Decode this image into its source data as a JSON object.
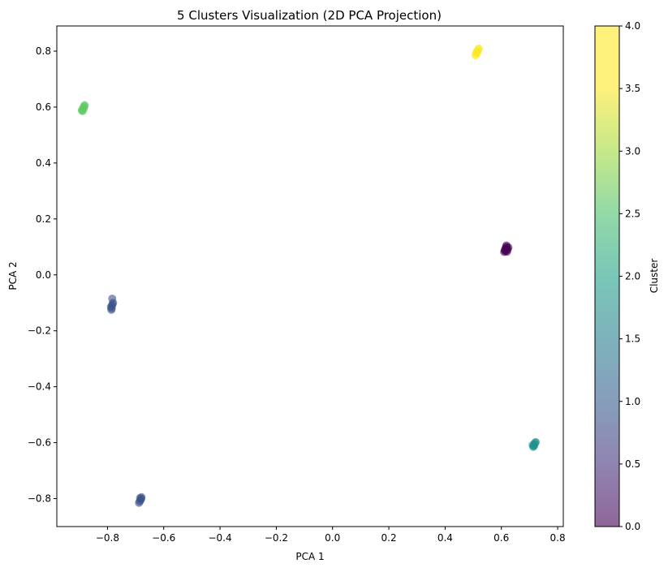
{
  "chart_data": {
    "type": "scatter",
    "title": "5 Clusters Visualization (2D PCA Projection)",
    "xlabel": "PCA 1",
    "ylabel": "PCA 2",
    "xlim": [
      -0.98,
      0.82
    ],
    "ylim": [
      -0.9,
      0.89
    ],
    "xticks": [
      -0.8,
      -0.6,
      -0.4,
      -0.2,
      0.0,
      0.2,
      0.4,
      0.6,
      0.8
    ],
    "yticks": [
      -0.8,
      -0.6,
      -0.4,
      -0.2,
      0.0,
      0.2,
      0.4,
      0.6,
      0.8
    ],
    "colorbar": {
      "label": "Cluster",
      "min": 0.0,
      "max": 4.0,
      "ticks": [
        0.0,
        0.5,
        1.0,
        1.5,
        2.0,
        2.5,
        3.0,
        3.5,
        4.0
      ],
      "colormap": "viridis"
    },
    "clusters": [
      {
        "cluster": 0,
        "color": "#440154",
        "points": [
          [
            0.615,
            0.085
          ],
          [
            0.62,
            0.095
          ],
          [
            0.617,
            0.1
          ],
          [
            0.612,
            0.088
          ],
          [
            0.622,
            0.09
          ],
          [
            0.618,
            0.105
          ],
          [
            0.61,
            0.082
          ],
          [
            0.625,
            0.098
          ],
          [
            0.614,
            0.094
          ],
          [
            0.62,
            0.083
          ]
        ]
      },
      {
        "cluster": 1,
        "color": "#3b528b",
        "points": [
          [
            -0.785,
            -0.12
          ],
          [
            -0.782,
            -0.105
          ],
          [
            -0.78,
            -0.1
          ],
          [
            -0.788,
            -0.115
          ],
          [
            -0.784,
            -0.11
          ],
          [
            -0.783,
            -0.085
          ],
          [
            -0.786,
            -0.125
          ],
          [
            -0.68,
            -0.8
          ],
          [
            -0.685,
            -0.81
          ],
          [
            -0.682,
            -0.805
          ],
          [
            -0.688,
            -0.815
          ],
          [
            -0.679,
            -0.795
          ],
          [
            -0.684,
            -0.798
          ]
        ]
      },
      {
        "cluster": 2,
        "color": "#21918c",
        "points": [
          [
            0.715,
            -0.61
          ],
          [
            0.72,
            -0.6
          ],
          [
            0.713,
            -0.615
          ],
          [
            0.718,
            -0.605
          ],
          [
            0.722,
            -0.598
          ],
          [
            0.711,
            -0.608
          ],
          [
            0.716,
            -0.612
          ]
        ]
      },
      {
        "cluster": 3,
        "color": "#5ec962",
        "points": [
          [
            -0.89,
            0.59
          ],
          [
            -0.885,
            0.6
          ],
          [
            -0.882,
            0.603
          ],
          [
            -0.888,
            0.585
          ],
          [
            -0.884,
            0.595
          ],
          [
            -0.891,
            0.588
          ],
          [
            -0.881,
            0.607
          ]
        ]
      },
      {
        "cluster": 4,
        "color": "#fde725",
        "points": [
          [
            0.51,
            0.79
          ],
          [
            0.515,
            0.8
          ],
          [
            0.518,
            0.805
          ],
          [
            0.508,
            0.785
          ],
          [
            0.514,
            0.795
          ],
          [
            0.52,
            0.81
          ],
          [
            0.512,
            0.798
          ]
        ]
      }
    ]
  }
}
